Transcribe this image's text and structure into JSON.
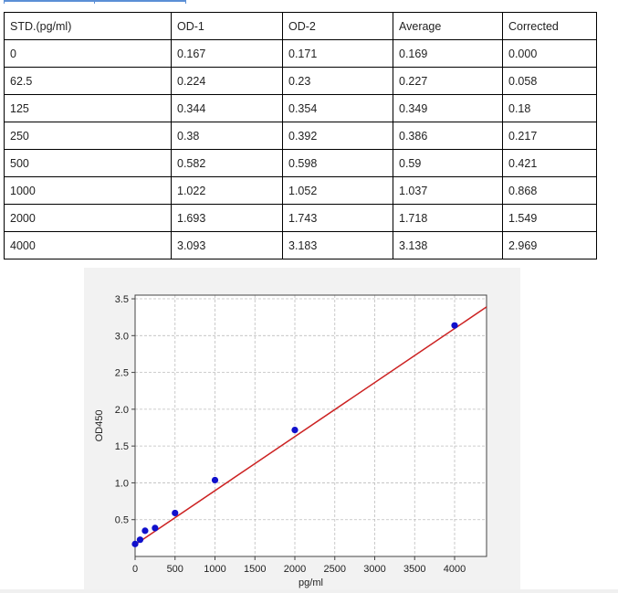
{
  "table": {
    "headers": [
      "STD.(pg/ml)",
      "OD-1",
      "OD-2",
      "Average",
      "Corrected"
    ],
    "rows": [
      [
        "0",
        "0.167",
        "0.171",
        "0.169",
        "0.000"
      ],
      [
        "62.5",
        "0.224",
        "0.23",
        "0.227",
        "0.058"
      ],
      [
        "125",
        "0.344",
        "0.354",
        "0.349",
        "0.18"
      ],
      [
        "250",
        "0.38",
        "0.392",
        "0.386",
        "0.217"
      ],
      [
        "500",
        "0.582",
        "0.598",
        "0.59",
        "0.421"
      ],
      [
        "1000",
        "1.022",
        "1.052",
        "1.037",
        "0.868"
      ],
      [
        "2000",
        "1.693",
        "1.743",
        "1.718",
        "1.549"
      ],
      [
        "4000",
        "3.093",
        "3.183",
        "3.138",
        "2.969"
      ]
    ]
  },
  "chart_data": {
    "type": "scatter",
    "title": "",
    "xlabel": "pg/ml",
    "ylabel": "OD450",
    "xlim": [
      0,
      4400
    ],
    "ylim": [
      0,
      3.55
    ],
    "xticks": [
      0,
      500,
      1000,
      1500,
      2000,
      2500,
      3000,
      3500,
      4000
    ],
    "yticks": [
      0.5,
      1.0,
      1.5,
      2.0,
      2.5,
      3.0,
      3.5
    ],
    "ytick_labels": [
      "0.5",
      "1.0",
      "1.5",
      "2.0",
      "2.5",
      "3.0",
      "3.5"
    ],
    "grid": true,
    "series": [
      {
        "x": [
          0,
          62.5,
          125,
          250,
          500,
          1000,
          2000,
          4000
        ],
        "y": [
          0.169,
          0.227,
          0.349,
          0.386,
          0.59,
          1.037,
          1.718,
          3.138
        ],
        "color": "#1010cc"
      }
    ],
    "fit_line": {
      "x": [
        0,
        4400
      ],
      "y": [
        0.16,
        3.39
      ],
      "color": "#cc2222"
    }
  }
}
